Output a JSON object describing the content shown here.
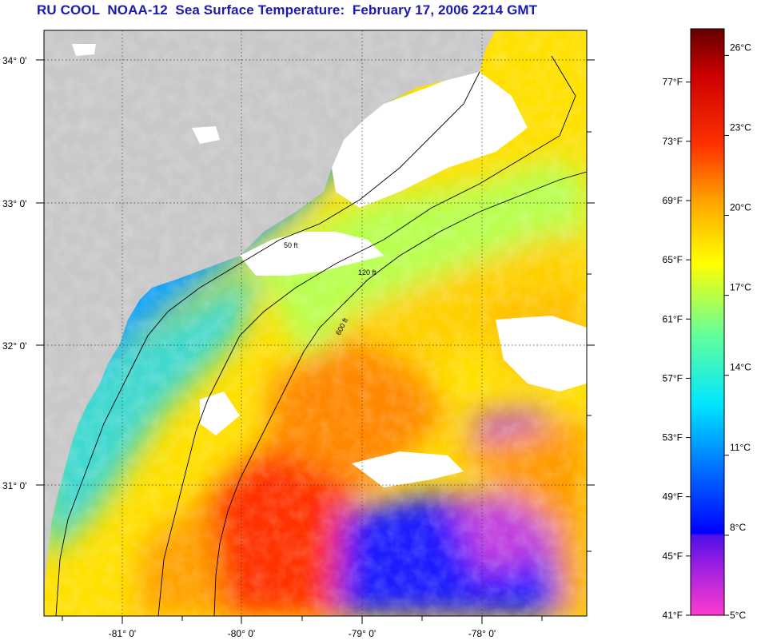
{
  "title": "RU COOL  NOAA-12  Sea Surface Temperature:  February 17, 2006 2214 GMT",
  "map": {
    "lat_labels": [
      "34° 0'",
      "33° 0'",
      "32° 0'",
      "31° 0'"
    ],
    "lon_labels": [
      "-81° 0'",
      "-80° 0'",
      "-79° 0'",
      "-78° 0'"
    ],
    "contour_labels": [
      "50 ft",
      "120 ft",
      "600 ft"
    ],
    "colors": {
      "land": "#c8c8c8",
      "cloud": "#ffffff",
      "frame": "#000000"
    }
  },
  "colorbar": {
    "fahrenheit_labels": [
      "77°F",
      "73°F",
      "69°F",
      "65°F",
      "61°F",
      "57°F",
      "53°F",
      "49°F",
      "45°F",
      "41°F"
    ],
    "celsius_labels": [
      "26°C",
      "23°C",
      "20°C",
      "17°C",
      "14°C",
      "11°C",
      "8°C",
      "5°C"
    ],
    "range_c": [
      5,
      27
    ],
    "colors_cold_to_warm": [
      "#ff3ccf",
      "#7a1fd8",
      "#0000ff",
      "#0066ff",
      "#00e6ff",
      "#66ff99",
      "#ffff00",
      "#ffaa00",
      "#ff3300",
      "#ff0000",
      "#660000"
    ]
  }
}
